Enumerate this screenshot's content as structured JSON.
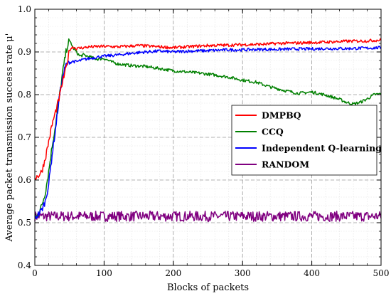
{
  "chart_data": {
    "type": "line",
    "xlabel": "Blocks of packets",
    "ylabel": "Average packet transmission success rate μ'",
    "xlim": [
      0,
      500
    ],
    "ylim": [
      0.4,
      1.0
    ],
    "x_ticks": [
      0,
      100,
      200,
      300,
      400,
      500
    ],
    "y_ticks": [
      0.4,
      0.5,
      0.6,
      0.7,
      0.8,
      0.9,
      1.0
    ],
    "x_tick_labels": [
      "0",
      "100",
      "200",
      "300",
      "400",
      "500"
    ],
    "y_tick_labels": [
      "0.4",
      "0.5",
      "0.6",
      "0.7",
      "0.8",
      "0.9",
      "1.0"
    ],
    "grid": true,
    "legend_position": "center-right",
    "series": [
      {
        "name": "DMPBQ",
        "color": "#ff0000",
        "x": [
          0,
          5,
          10,
          15,
          20,
          25,
          30,
          35,
          40,
          45,
          50,
          55,
          60,
          70,
          80,
          100,
          120,
          150,
          180,
          200,
          220,
          250,
          280,
          300,
          330,
          350,
          380,
          400,
          420,
          450,
          480,
          500
        ],
        "y": [
          0.605,
          0.61,
          0.62,
          0.65,
          0.69,
          0.73,
          0.76,
          0.79,
          0.83,
          0.86,
          0.905,
          0.912,
          0.908,
          0.91,
          0.912,
          0.913,
          0.912,
          0.915,
          0.912,
          0.91,
          0.912,
          0.915,
          0.916,
          0.917,
          0.918,
          0.92,
          0.921,
          0.922,
          0.923,
          0.925,
          0.926,
          0.928
        ]
      },
      {
        "name": "CCQ",
        "color": "#008000",
        "x": [
          0,
          5,
          10,
          15,
          20,
          25,
          30,
          35,
          40,
          45,
          49,
          52,
          55,
          60,
          65,
          70,
          80,
          90,
          100,
          110,
          120,
          140,
          160,
          180,
          200,
          220,
          240,
          260,
          280,
          300,
          320,
          340,
          360,
          380,
          400,
          420,
          440,
          450,
          460,
          470,
          480,
          490,
          500
        ],
        "y": [
          0.51,
          0.52,
          0.54,
          0.57,
          0.62,
          0.68,
          0.73,
          0.79,
          0.85,
          0.9,
          0.925,
          0.922,
          0.91,
          0.9,
          0.89,
          0.893,
          0.888,
          0.883,
          0.885,
          0.877,
          0.872,
          0.868,
          0.866,
          0.861,
          0.856,
          0.853,
          0.85,
          0.846,
          0.841,
          0.834,
          0.829,
          0.818,
          0.81,
          0.803,
          0.806,
          0.799,
          0.789,
          0.782,
          0.778,
          0.782,
          0.79,
          0.8,
          0.802
        ]
      },
      {
        "name": "Independent Q-learning",
        "color": "#0000ff",
        "x": [
          0,
          5,
          10,
          15,
          20,
          25,
          30,
          35,
          40,
          45,
          50,
          55,
          60,
          70,
          80,
          90,
          100,
          120,
          140,
          160,
          180,
          200,
          220,
          250,
          280,
          300,
          330,
          350,
          380,
          400,
          420,
          450,
          480,
          500
        ],
        "y": [
          0.51,
          0.52,
          0.53,
          0.55,
          0.59,
          0.66,
          0.72,
          0.79,
          0.84,
          0.87,
          0.875,
          0.878,
          0.877,
          0.882,
          0.885,
          0.888,
          0.89,
          0.893,
          0.897,
          0.9,
          0.902,
          0.9,
          0.902,
          0.903,
          0.905,
          0.905,
          0.906,
          0.906,
          0.907,
          0.907,
          0.908,
          0.908,
          0.909,
          0.91
        ]
      },
      {
        "name": "RANDOM",
        "color": "#800080",
        "x": [
          0,
          500
        ],
        "y": [
          0.515,
          0.515
        ],
        "noise_amplitude": 0.012
      }
    ]
  }
}
